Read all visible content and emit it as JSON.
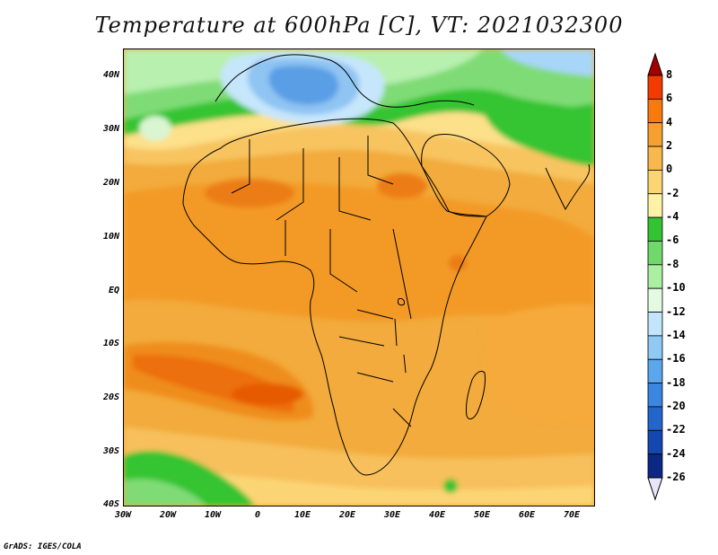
{
  "title": "Temperature at 600hPa [C], VT: 2021032300",
  "footer": "GrADS: IGES/COLA",
  "map": {
    "type": "filled-contour",
    "lon_range": [
      -30,
      75
    ],
    "lat_range": [
      -40,
      45
    ],
    "lat_ticks": [
      "40N",
      "30N",
      "20N",
      "10N",
      "EQ",
      "10S",
      "20S",
      "30S",
      "40S"
    ],
    "lon_ticks": [
      "30W",
      "20W",
      "10W",
      "0",
      "10E",
      "20E",
      "30E",
      "40E",
      "50E",
      "60E",
      "70E"
    ]
  },
  "colorbar": {
    "labels": [
      "8",
      "6",
      "4",
      "2",
      "0",
      "-2",
      "-4",
      "-6",
      "-8",
      "-10",
      "-12",
      "-14",
      "-16",
      "-18",
      "-20",
      "-22",
      "-24",
      "-26"
    ],
    "colors": [
      "#a50000",
      "#f33b00",
      "#f87a0d",
      "#f5a030",
      "#f7b84d",
      "#fbd574",
      "#fff2a5",
      "#34c433",
      "#70d96b",
      "#aaefa2",
      "#e3fbe0",
      "#c1e5fb",
      "#8fc9f4",
      "#5aa7ee",
      "#3b86e0",
      "#2266cc",
      "#1447b0",
      "#0b2885",
      "#081a5e"
    ]
  }
}
